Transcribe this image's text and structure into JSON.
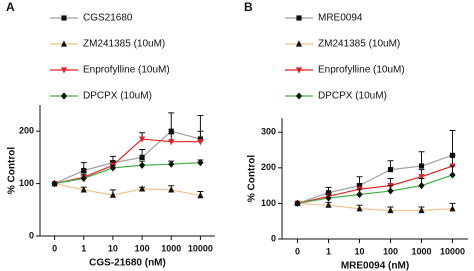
{
  "chart_data": [
    {
      "type": "line",
      "label": "A",
      "x_label": "CGS-21680 (nM)",
      "y_label": "% Control",
      "categories": [
        "0",
        "1",
        "10",
        "100",
        "1000",
        "10000"
      ],
      "ylim": [
        0,
        250
      ],
      "yticks": [
        0,
        100,
        200
      ],
      "series": [
        {
          "name": "CGS21680",
          "color": "#a0a0a0",
          "marker": "square",
          "marker_color": "#111111",
          "values": [
            100,
            125,
            140,
            150,
            200,
            185
          ],
          "errors": [
            0,
            15,
            12,
            15,
            35,
            45
          ]
        },
        {
          "name": "ZM241385 (10uM)",
          "color": "#f2c28a",
          "marker": "triangle",
          "marker_color": "#111111",
          "values": [
            100,
            88,
            78,
            90,
            88,
            77
          ],
          "errors": [
            0,
            5,
            10,
            3,
            8,
            8
          ]
        },
        {
          "name": "Enprofylline (10uM)",
          "color": "#e02424",
          "marker": "triangle-down",
          "marker_color": "#e02424",
          "values": [
            100,
            112,
            135,
            185,
            180,
            180
          ],
          "errors": [
            0,
            10,
            8,
            12,
            15,
            20
          ]
        },
        {
          "name": "DPCPX (10uM)",
          "color": "#45b045",
          "marker": "diamond",
          "marker_color": "#111111",
          "values": [
            100,
            110,
            130,
            135,
            137,
            140
          ],
          "errors": [
            0,
            8,
            5,
            8,
            6,
            5
          ]
        }
      ]
    },
    {
      "type": "line",
      "label": "B",
      "x_label": "MRE0094 (nM)",
      "y_label": "% Control",
      "categories": [
        "0",
        "1",
        "10",
        "100",
        "1000",
        "10000"
      ],
      "ylim": [
        0,
        340
      ],
      "yticks": [
        0,
        100,
        200,
        300
      ],
      "series": [
        {
          "name": "MRE0094",
          "color": "#a0a0a0",
          "marker": "square",
          "marker_color": "#111111",
          "values": [
            100,
            130,
            150,
            195,
            205,
            235
          ],
          "errors": [
            0,
            15,
            25,
            25,
            40,
            70
          ]
        },
        {
          "name": "ZM241385 (10uM)",
          "color": "#f2c28a",
          "marker": "triangle",
          "marker_color": "#111111",
          "values": [
            100,
            95,
            85,
            80,
            80,
            85
          ],
          "errors": [
            0,
            8,
            10,
            10,
            10,
            15
          ]
        },
        {
          "name": "Enprofylline (10uM)",
          "color": "#e02424",
          "marker": "triangle-down",
          "marker_color": "#e02424",
          "values": [
            100,
            120,
            140,
            150,
            175,
            205
          ],
          "errors": [
            0,
            10,
            15,
            20,
            20,
            30
          ]
        },
        {
          "name": "DPCPX (10uM)",
          "color": "#45b045",
          "marker": "diamond",
          "marker_color": "#111111",
          "values": [
            100,
            115,
            125,
            135,
            150,
            180
          ],
          "errors": [
            0,
            10,
            15,
            15,
            20,
            25
          ]
        }
      ]
    }
  ]
}
